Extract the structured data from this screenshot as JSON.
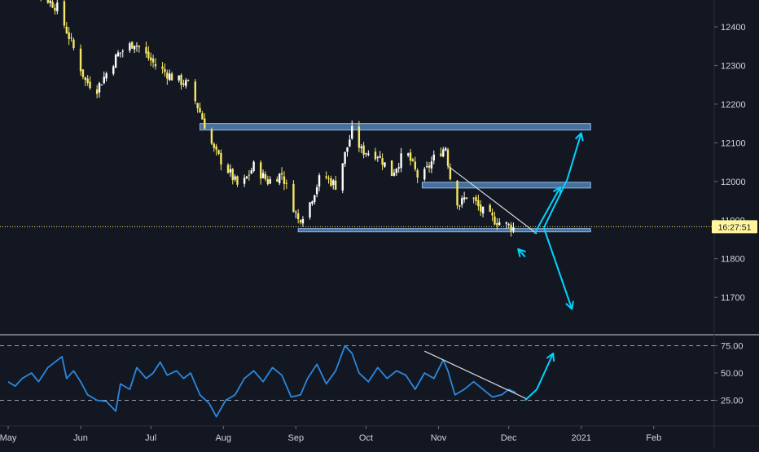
{
  "colors": {
    "background": "#131722",
    "candle_up": "#ffffff",
    "candle_down": "#f5e663",
    "zone_fill": "#5b8fc7",
    "zone_stroke": "#8fb8e8",
    "arrow": "#00d4ff",
    "rsi_line": "#2a88e0",
    "trendline": "#d8d8d8",
    "axis_text": "#d1d4dc",
    "price_label_bg": "#fff59d",
    "price_line": "#f5e663",
    "divider": "#cfd3dc"
  },
  "chart_data": [
    {
      "type": "candlestick",
      "title": "",
      "xlabel": "",
      "ylabel": "",
      "x_range": [
        "2020-05-01",
        "2021-02-15"
      ],
      "ylim": [
        11600,
        12480
      ],
      "grid": false,
      "x_ticks": [
        {
          "date": "2020-05-01",
          "label": "May"
        },
        {
          "date": "2020-06-01",
          "label": "Jun"
        },
        {
          "date": "2020-07-01",
          "label": "Jul"
        },
        {
          "date": "2020-08-01",
          "label": "Aug"
        },
        {
          "date": "2020-09-01",
          "label": "Sep"
        },
        {
          "date": "2020-10-01",
          "label": "Oct"
        },
        {
          "date": "2020-11-01",
          "label": "Nov"
        },
        {
          "date": "2020-12-01",
          "label": "Dec"
        },
        {
          "date": "2021-01-01",
          "label": "2021"
        },
        {
          "date": "2021-02-01",
          "label": "Feb"
        }
      ],
      "y_ticks": [
        {
          "value": 12400,
          "label": "12400"
        },
        {
          "value": 12300,
          "label": "12300"
        },
        {
          "value": 12200,
          "label": "12200"
        },
        {
          "value": 12100,
          "label": "12100"
        },
        {
          "value": 12000,
          "label": "12000"
        },
        {
          "value": 11900,
          "label": "11900"
        },
        {
          "value": 11800,
          "label": "11800"
        },
        {
          "value": 11700,
          "label": "11700"
        }
      ],
      "current_price": {
        "value": 11883,
        "label": "16:27:51"
      },
      "close_anchors": [
        [
          "2020-05-01",
          12520
        ],
        [
          "2020-05-12",
          12500
        ],
        [
          "2020-05-22",
          12450
        ],
        [
          "2020-05-28",
          12360
        ],
        [
          "2020-06-03",
          12260
        ],
        [
          "2020-06-08",
          12240
        ],
        [
          "2020-06-17",
          12330
        ],
        [
          "2020-06-24",
          12360
        ],
        [
          "2020-07-03",
          12300
        ],
        [
          "2020-07-10",
          12270
        ],
        [
          "2020-07-17",
          12250
        ],
        [
          "2020-07-22",
          12180
        ],
        [
          "2020-07-28",
          12080
        ],
        [
          "2020-08-04",
          12020
        ],
        [
          "2020-08-08",
          11980
        ],
        [
          "2020-08-14",
          12040
        ],
        [
          "2020-08-20",
          12000
        ],
        [
          "2020-08-26",
          12020
        ],
        [
          "2020-09-02",
          11900
        ],
        [
          "2020-09-06",
          11930
        ],
        [
          "2020-09-12",
          12020
        ],
        [
          "2020-09-18",
          11990
        ],
        [
          "2020-09-25",
          12130
        ],
        [
          "2020-09-29",
          12080
        ],
        [
          "2020-10-06",
          12070
        ],
        [
          "2020-10-12",
          12020
        ],
        [
          "2020-10-18",
          12080
        ],
        [
          "2020-10-24",
          12000
        ],
        [
          "2020-10-30",
          12060
        ],
        [
          "2020-11-04",
          12090
        ],
        [
          "2020-11-07",
          11970
        ],
        [
          "2020-11-10",
          11940
        ],
        [
          "2020-11-14",
          11970
        ],
        [
          "2020-11-19",
          11925
        ],
        [
          "2020-11-25",
          11900
        ],
        [
          "2020-12-03",
          11880
        ]
      ],
      "zones": [
        {
          "start": "2020-07-22",
          "end": "2021-01-05",
          "low": 12133,
          "high": 12150
        },
        {
          "start": "2020-10-25",
          "end": "2021-01-05",
          "low": 11983,
          "high": 11998
        },
        {
          "start": "2020-09-02",
          "end": "2021-01-05",
          "low": 11873,
          "high": 11878
        }
      ],
      "trendline": {
        "start": [
          "2020-11-05",
          12040
        ],
        "end": [
          "2020-12-13",
          11865
        ]
      },
      "projection_arrows": [
        {
          "points": [
            [
              "2020-12-08",
              11805
            ],
            [
              "2020-12-05",
              11825
            ]
          ]
        },
        {
          "points": [
            [
              "2020-12-12",
              11865
            ],
            [
              "2020-12-23",
              11985
            ]
          ]
        },
        {
          "points": [
            [
              "2020-12-16",
              11880
            ],
            [
              "2020-12-26",
              12005
            ],
            [
              "2021-01-01",
              12125
            ]
          ]
        },
        {
          "points": [
            [
              "2020-12-16",
              11880
            ],
            [
              "2020-12-28",
              11670
            ]
          ]
        }
      ]
    },
    {
      "type": "line",
      "title": "",
      "xlabel": "",
      "ylabel": "",
      "ylim": [
        0,
        100
      ],
      "grid": false,
      "y_ticks": [
        {
          "value": 75,
          "label": "75.00"
        },
        {
          "value": 50,
          "label": "50.00"
        },
        {
          "value": 25,
          "label": "25.00"
        }
      ],
      "reference_lines": [
        75,
        25
      ],
      "series": [
        {
          "points": [
            [
              "2020-05-01",
              42
            ],
            [
              "2020-05-04",
              38
            ],
            [
              "2020-05-07",
              45
            ],
            [
              "2020-05-11",
              50
            ],
            [
              "2020-05-14",
              42
            ],
            [
              "2020-05-18",
              55
            ],
            [
              "2020-05-21",
              60
            ],
            [
              "2020-05-24",
              65
            ],
            [
              "2020-05-26",
              45
            ],
            [
              "2020-05-29",
              52
            ],
            [
              "2020-06-01",
              42
            ],
            [
              "2020-06-04",
              30
            ],
            [
              "2020-06-08",
              25
            ],
            [
              "2020-06-12",
              24
            ],
            [
              "2020-06-16",
              15
            ],
            [
              "2020-06-18",
              40
            ],
            [
              "2020-06-22",
              35
            ],
            [
              "2020-06-25",
              55
            ],
            [
              "2020-06-29",
              45
            ],
            [
              "2020-07-02",
              50
            ],
            [
              "2020-07-05",
              60
            ],
            [
              "2020-07-08",
              48
            ],
            [
              "2020-07-12",
              52
            ],
            [
              "2020-07-15",
              45
            ],
            [
              "2020-07-18",
              50
            ],
            [
              "2020-07-22",
              30
            ],
            [
              "2020-07-26",
              22
            ],
            [
              "2020-07-29",
              10
            ],
            [
              "2020-08-02",
              25
            ],
            [
              "2020-08-06",
              30
            ],
            [
              "2020-08-10",
              45
            ],
            [
              "2020-08-14",
              52
            ],
            [
              "2020-08-18",
              42
            ],
            [
              "2020-08-22",
              55
            ],
            [
              "2020-08-26",
              48
            ],
            [
              "2020-08-30",
              28
            ],
            [
              "2020-09-03",
              30
            ],
            [
              "2020-09-06",
              45
            ],
            [
              "2020-09-10",
              58
            ],
            [
              "2020-09-14",
              40
            ],
            [
              "2020-09-18",
              52
            ],
            [
              "2020-09-22",
              75
            ],
            [
              "2020-09-25",
              68
            ],
            [
              "2020-09-28",
              50
            ],
            [
              "2020-10-02",
              42
            ],
            [
              "2020-10-06",
              55
            ],
            [
              "2020-10-10",
              45
            ],
            [
              "2020-10-14",
              52
            ],
            [
              "2020-10-18",
              48
            ],
            [
              "2020-10-22",
              35
            ],
            [
              "2020-10-26",
              50
            ],
            [
              "2020-10-30",
              45
            ],
            [
              "2020-11-03",
              62
            ],
            [
              "2020-11-05",
              52
            ],
            [
              "2020-11-08",
              30
            ],
            [
              "2020-11-12",
              35
            ],
            [
              "2020-11-16",
              42
            ],
            [
              "2020-11-20",
              35
            ],
            [
              "2020-11-24",
              28
            ],
            [
              "2020-11-28",
              30
            ],
            [
              "2020-12-01",
              35
            ],
            [
              "2020-12-04",
              32
            ]
          ]
        }
      ],
      "trendline": {
        "start": [
          "2020-10-26",
          70
        ],
        "end": [
          "2020-12-09",
          26
        ]
      },
      "projection_arrows": [
        {
          "points": [
            [
              "2020-12-08",
              25
            ],
            [
              "2020-12-13",
              35
            ],
            [
              "2020-12-20",
              68
            ]
          ]
        }
      ]
    }
  ]
}
